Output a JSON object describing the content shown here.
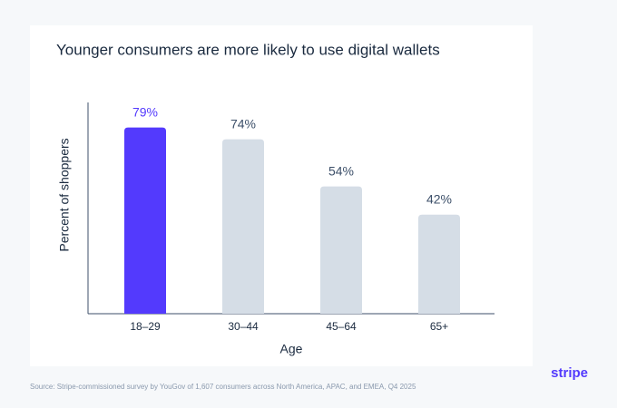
{
  "chart_data": {
    "type": "bar",
    "title": "Younger consumers are more likely to use digital wallets",
    "x_label": "Age",
    "y_label": "Percent of shoppers",
    "categories": [
      "18–29",
      "30–44",
      "45–64",
      "65+"
    ],
    "values": [
      79,
      74,
      54,
      42
    ],
    "value_labels": [
      "79%",
      "74%",
      "54%",
      "42%"
    ],
    "colors": [
      "#533afd",
      "#d5dde6",
      "#d5dde6",
      "#d5dde6"
    ],
    "value_label_colors": [
      "#533afd",
      "#3c4f69",
      "#3c4f69",
      "#3c4f69"
    ],
    "ylim": [
      0,
      100
    ]
  },
  "footer": {
    "source": "Source: Stripe-commissioned survey by YouGov of 1,607 consumers across North America, APAC, and EMEA, Q4 2025",
    "logo": "stripe"
  }
}
